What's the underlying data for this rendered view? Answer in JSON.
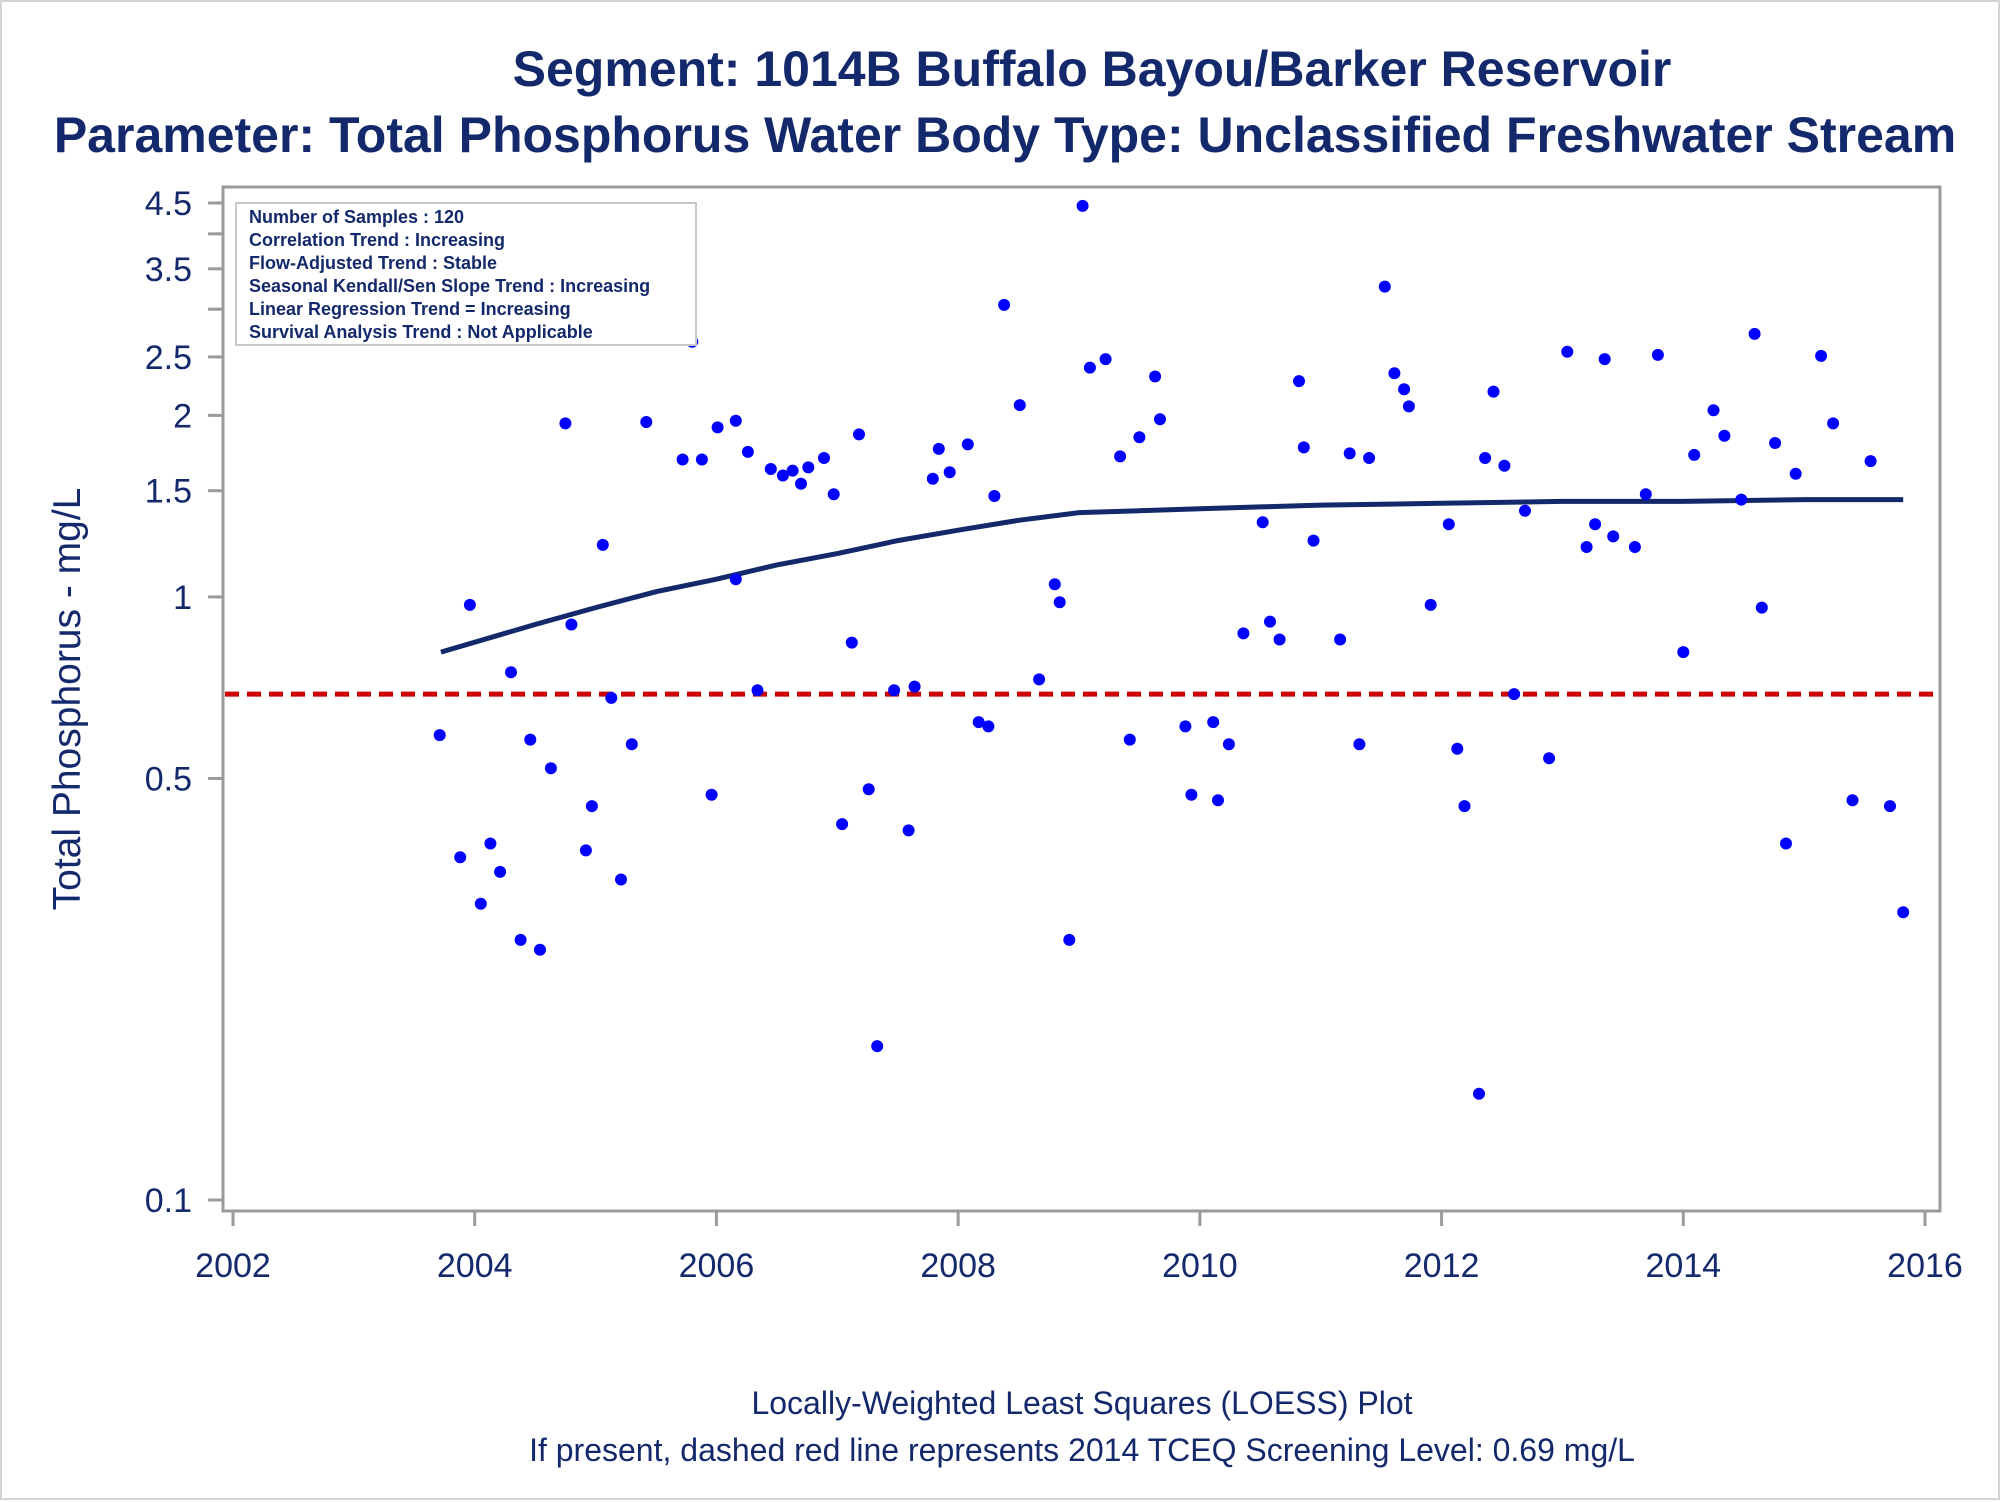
{
  "chart_data": {
    "type": "scatter",
    "title": "Segment: 1014B  Buffalo Bayou/Barker Reservoir",
    "subtitle": "Parameter: Total Phosphorus   Water Body Type: Unclassified Freshwater Stream",
    "xlabel": "",
    "ylabel": "Total Phosphorus - mg/L",
    "xlim": [
      2002,
      2016
    ],
    "ylim": [
      0.1,
      4.5
    ],
    "y_scale": "log",
    "grid": false,
    "x_ticks": [
      "2002",
      "2004",
      "2006",
      "2008",
      "2010",
      "2012",
      "2014",
      "2016"
    ],
    "y_ticks": [
      {
        "value": 0.1,
        "label": "0.1"
      },
      {
        "value": 0.5,
        "label": "0.5"
      },
      {
        "value": 1,
        "label": "1"
      },
      {
        "value": 1.5,
        "label": "1.5"
      },
      {
        "value": 2,
        "label": "2"
      },
      {
        "value": 2.5,
        "label": "2.5"
      },
      {
        "value": 3,
        "label": ""
      },
      {
        "value": 3.5,
        "label": "3.5"
      },
      {
        "value": 4,
        "label": ""
      },
      {
        "value": 4.5,
        "label": "4.5"
      }
    ],
    "stats_box": {
      "placement": "top-left",
      "lines": [
        "Number of Samples : 120",
        "Correlation Trend : Increasing",
        "Flow-Adjusted Trend : Stable",
        "Seasonal Kendall/Sen Slope Trend : Increasing",
        "Linear Regression Trend = Increasing",
        "Survival Analysis Trend : Not Applicable"
      ]
    },
    "screening_level": {
      "value": 0.69,
      "style": "dashed",
      "color": "#cc0000"
    },
    "footnotes": [
      "Locally-Weighted Least Squares (LOESS) Plot",
      "If present, dashed red line represents 2014 TCEQ Screening Level: 0.69 mg/L"
    ],
    "series": [
      {
        "marker": "dot",
        "color": "#0000ff",
        "points": [
          [
            2003.71,
            0.59
          ],
          [
            2003.88,
            0.37
          ],
          [
            2003.96,
            0.97
          ],
          [
            2004.05,
            0.31
          ],
          [
            2004.13,
            0.39
          ],
          [
            2004.21,
            0.35
          ],
          [
            2004.3,
            0.75
          ],
          [
            2004.38,
            0.27
          ],
          [
            2004.46,
            0.58
          ],
          [
            2004.54,
            0.26
          ],
          [
            2004.63,
            0.52
          ],
          [
            2004.75,
            1.94
          ],
          [
            2004.8,
            0.9
          ],
          [
            2004.92,
            0.38
          ],
          [
            2004.97,
            0.45
          ],
          [
            2005.06,
            1.22
          ],
          [
            2005.13,
            0.68
          ],
          [
            2005.21,
            0.34
          ],
          [
            2005.3,
            0.57
          ],
          [
            2005.42,
            1.95
          ],
          [
            2005.72,
            1.69
          ],
          [
            2005.8,
            2.65
          ],
          [
            2005.88,
            1.69
          ],
          [
            2005.96,
            0.47
          ],
          [
            2006.01,
            1.91
          ],
          [
            2006.16,
            1.96
          ],
          [
            2006.16,
            1.07
          ],
          [
            2006.26,
            1.74
          ],
          [
            2006.34,
            0.7
          ],
          [
            2006.45,
            1.63
          ],
          [
            2006.55,
            1.59
          ],
          [
            2006.63,
            1.62
          ],
          [
            2006.7,
            1.54
          ],
          [
            2006.76,
            1.64
          ],
          [
            2006.89,
            1.7
          ],
          [
            2006.97,
            1.48
          ],
          [
            2007.04,
            0.42
          ],
          [
            2007.12,
            0.84
          ],
          [
            2007.18,
            1.86
          ],
          [
            2007.26,
            0.48
          ],
          [
            2007.33,
            0.18
          ],
          [
            2007.47,
            0.7
          ],
          [
            2007.59,
            0.41
          ],
          [
            2007.64,
            0.71
          ],
          [
            2007.79,
            1.57
          ],
          [
            2007.84,
            1.76
          ],
          [
            2007.93,
            1.61
          ],
          [
            2008.08,
            1.79
          ],
          [
            2008.17,
            0.62
          ],
          [
            2008.25,
            0.61
          ],
          [
            2008.3,
            1.47
          ],
          [
            2008.38,
            3.05
          ],
          [
            2008.51,
            2.08
          ],
          [
            2008.67,
            0.73
          ],
          [
            2008.8,
            1.05
          ],
          [
            2008.84,
            0.98
          ],
          [
            2008.92,
            0.27
          ],
          [
            2009.03,
            4.45
          ],
          [
            2009.09,
            2.4
          ],
          [
            2009.22,
            2.48
          ],
          [
            2009.34,
            1.71
          ],
          [
            2009.42,
            0.58
          ],
          [
            2009.5,
            1.84
          ],
          [
            2009.63,
            2.32
          ],
          [
            2009.67,
            1.97
          ],
          [
            2009.88,
            0.61
          ],
          [
            2009.93,
            0.47
          ],
          [
            2010.11,
            0.62
          ],
          [
            2010.15,
            0.46
          ],
          [
            2010.24,
            0.57
          ],
          [
            2010.36,
            0.87
          ],
          [
            2010.52,
            1.33
          ],
          [
            2010.58,
            0.91
          ],
          [
            2010.66,
            0.85
          ],
          [
            2010.82,
            2.28
          ],
          [
            2010.86,
            1.77
          ],
          [
            2010.94,
            1.24
          ],
          [
            2011.16,
            0.85
          ],
          [
            2011.24,
            1.73
          ],
          [
            2011.32,
            0.57
          ],
          [
            2011.4,
            1.7
          ],
          [
            2011.53,
            3.27
          ],
          [
            2011.61,
            2.35
          ],
          [
            2011.69,
            2.21
          ],
          [
            2011.73,
            2.07
          ],
          [
            2011.91,
            0.97
          ],
          [
            2012.06,
            1.32
          ],
          [
            2012.13,
            0.56
          ],
          [
            2012.19,
            0.45
          ],
          [
            2012.31,
            0.15
          ],
          [
            2012.36,
            1.7
          ],
          [
            2012.43,
            2.19
          ],
          [
            2012.52,
            1.65
          ],
          [
            2012.6,
            0.69
          ],
          [
            2012.69,
            1.39
          ],
          [
            2012.89,
            0.54
          ],
          [
            2013.04,
            2.55
          ],
          [
            2013.2,
            1.21
          ],
          [
            2013.27,
            1.32
          ],
          [
            2013.35,
            2.48
          ],
          [
            2013.42,
            1.26
          ],
          [
            2013.6,
            1.21
          ],
          [
            2013.69,
            1.48
          ],
          [
            2013.79,
            2.52
          ],
          [
            2014.0,
            0.81
          ],
          [
            2014.09,
            1.72
          ],
          [
            2014.25,
            2.04
          ],
          [
            2014.34,
            1.85
          ],
          [
            2014.48,
            1.45
          ],
          [
            2014.59,
            2.73
          ],
          [
            2014.65,
            0.96
          ],
          [
            2014.76,
            1.8
          ],
          [
            2014.85,
            0.39
          ],
          [
            2014.93,
            1.6
          ],
          [
            2015.14,
            2.51
          ],
          [
            2015.24,
            1.94
          ],
          [
            2015.4,
            0.46
          ],
          [
            2015.55,
            1.68
          ],
          [
            2015.71,
            0.45
          ],
          [
            2015.82,
            0.3
          ]
        ]
      },
      {
        "marker": "line",
        "color": "#13296b",
        "points": [
          [
            2003.72,
            0.81
          ],
          [
            2004.5,
            0.9
          ],
          [
            2005.0,
            0.96
          ],
          [
            2005.5,
            1.02
          ],
          [
            2006.0,
            1.07
          ],
          [
            2006.5,
            1.13
          ],
          [
            2007.0,
            1.18
          ],
          [
            2007.5,
            1.24
          ],
          [
            2008.0,
            1.29
          ],
          [
            2008.5,
            1.34
          ],
          [
            2009.0,
            1.38
          ],
          [
            2009.5,
            1.39
          ],
          [
            2010.0,
            1.4
          ],
          [
            2010.5,
            1.41
          ],
          [
            2011.0,
            1.42
          ],
          [
            2012.0,
            1.43
          ],
          [
            2013.0,
            1.44
          ],
          [
            2014.0,
            1.44
          ],
          [
            2015.0,
            1.45
          ],
          [
            2015.82,
            1.45
          ]
        ]
      }
    ]
  }
}
